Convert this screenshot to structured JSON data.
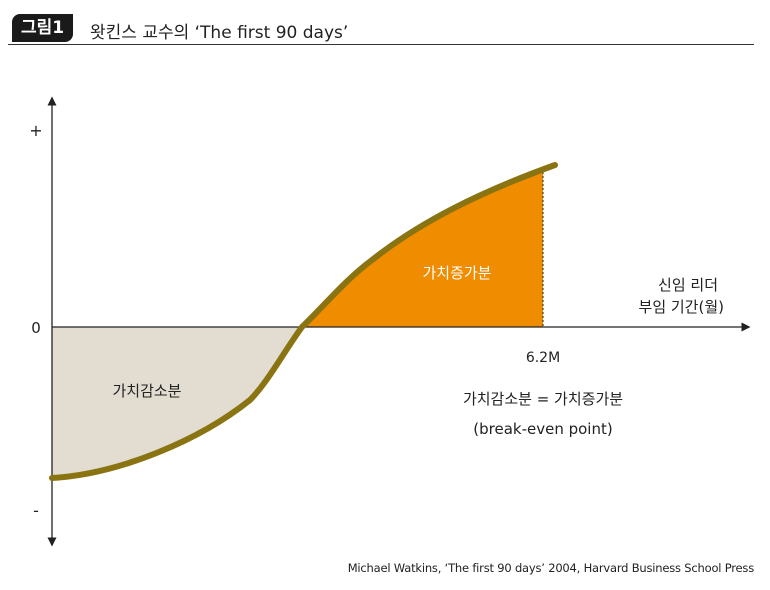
{
  "header": {
    "badge": "그림1",
    "title": "왓킨스 교수의 ‘The first 90 days’"
  },
  "diagram": {
    "y_top_label": "+",
    "y_zero_label": "0",
    "y_bottom_label": "-",
    "x_label_line1": "신임 리더",
    "x_label_line2": "부임 기간(월)",
    "breakpoint_label": "6.2M",
    "area_loss_label": "가치감소분",
    "area_gain_label": "가치증가분",
    "equation_line1": "가치감소분 = 가치증가분",
    "equation_line2": "(break-even point)",
    "colors": {
      "loss_fill": "#e2dcd1",
      "gain_fill": "#f08c00",
      "curve": "#8a7412",
      "axis": "#222222"
    }
  },
  "credit": "Michael Watkins, ‘The first 90 days’ 2004, Harvard Business School Press"
}
